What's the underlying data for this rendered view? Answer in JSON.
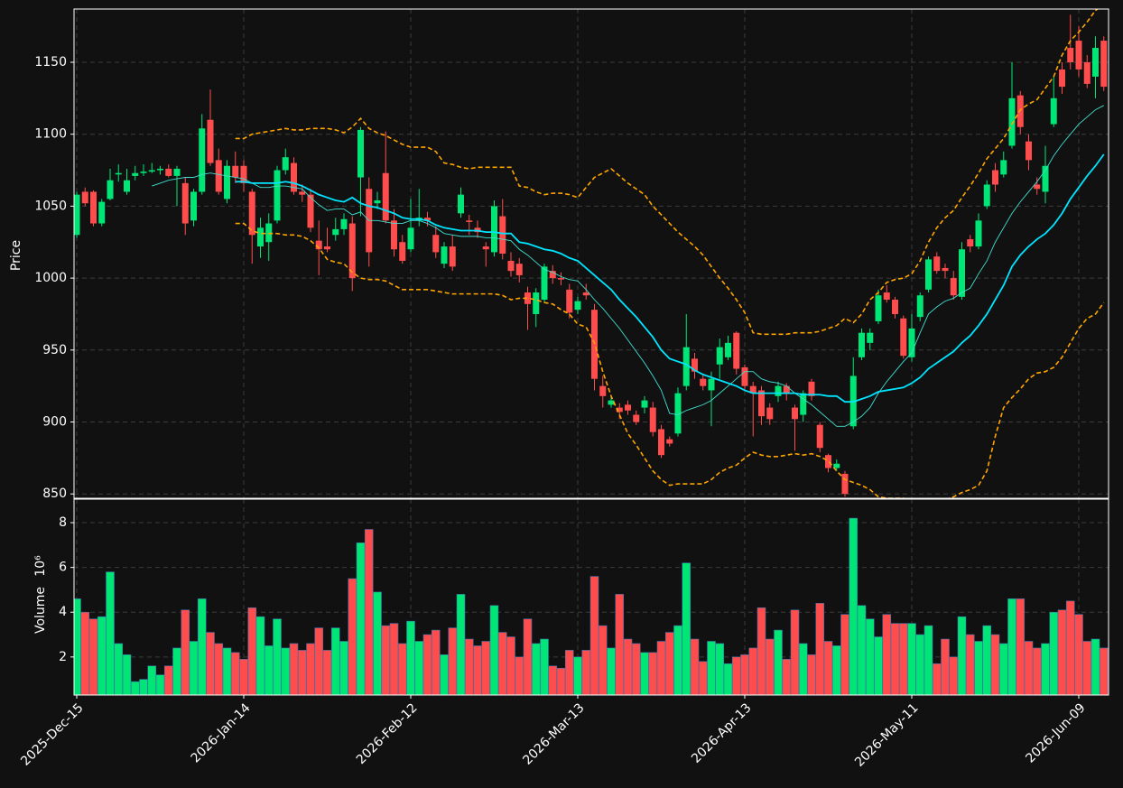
{
  "chart_data": {
    "type": "candlestick",
    "categories": [
      "2025-Dec-15",
      null,
      null,
      null,
      null,
      null,
      null,
      null,
      null,
      null,
      null,
      null,
      null,
      null,
      null,
      null,
      null,
      null,
      null,
      null,
      "2026-Jan-14",
      null,
      null,
      null,
      null,
      null,
      null,
      null,
      null,
      null,
      null,
      null,
      null,
      null,
      null,
      null,
      null,
      null,
      null,
      null,
      "2026-Feb-12",
      null,
      null,
      null,
      null,
      null,
      null,
      null,
      null,
      null,
      null,
      null,
      null,
      null,
      null,
      null,
      null,
      null,
      null,
      null,
      "2026-Mar-13",
      null,
      null,
      null,
      null,
      null,
      null,
      null,
      null,
      null,
      null,
      null,
      null,
      null,
      null,
      null,
      null,
      null,
      null,
      null,
      "2026-Apr-13",
      null,
      null,
      null,
      null,
      null,
      null,
      null,
      null,
      null,
      null,
      null,
      null,
      null,
      null,
      null,
      null,
      null,
      null,
      null,
      "2026-May-11",
      null,
      null,
      null,
      null,
      null,
      null,
      null,
      null,
      null,
      null,
      null,
      null,
      null,
      null,
      null,
      null,
      null,
      null,
      null,
      "2026-Jun-09",
      null,
      null,
      null
    ],
    "open": [
      1030,
      1060,
      1060,
      1038,
      1055,
      1072,
      1060,
      1071,
      1073,
      1074,
      1075,
      1076,
      1071,
      1066,
      1040,
      1060,
      1110,
      1082,
      1055,
      1078,
      1078,
      1060,
      1022,
      1025,
      1040,
      1075,
      1080,
      1060,
      1058,
      1026,
      1022,
      1030,
      1034,
      1038,
      1070,
      1062,
      1052,
      1073,
      1040,
      1025,
      1020,
      1040,
      1042,
      1030,
      1010,
      1022,
      1045,
      1040,
      1035,
      1022,
      1018,
      1043,
      1012,
      1010,
      990,
      975,
      985,
      1005,
      1000,
      992,
      978,
      990,
      978,
      925,
      912,
      910,
      912,
      905,
      910,
      910,
      895,
      888,
      892,
      925,
      944,
      930,
      922,
      940,
      945,
      962,
      938,
      925,
      922,
      910,
      918,
      925,
      910,
      905,
      928,
      898,
      877,
      868,
      864,
      897,
      945,
      955,
      970,
      990,
      985,
      972,
      945,
      973,
      992,
      1015,
      1007,
      1000,
      987,
      1027,
      1022,
      1050,
      1075,
      1072,
      1092,
      1127,
      1095,
      1065,
      1060,
      1107,
      1145,
      1160,
      1165,
      1150,
      1140,
      1165
    ],
    "high": [
      1060,
      1063,
      1061,
      1055,
      1076,
      1079,
      1076,
      1078,
      1079,
      1080,
      1078,
      1079,
      1078,
      1070,
      1062,
      1114,
      1131,
      1090,
      1082,
      1088,
      1082,
      1062,
      1042,
      1045,
      1078,
      1090,
      1084,
      1065,
      1062,
      1040,
      1035,
      1042,
      1045,
      1043,
      1105,
      1070,
      1060,
      1102,
      1048,
      1030,
      1055,
      1062,
      1046,
      1036,
      1025,
      1030,
      1063,
      1044,
      1040,
      1025,
      1054,
      1055,
      1018,
      1014,
      994,
      993,
      1010,
      1009,
      1004,
      996,
      987,
      996,
      982,
      932,
      918,
      913,
      915,
      908,
      918,
      914,
      898,
      890,
      924,
      975,
      948,
      933,
      935,
      958,
      960,
      963,
      940,
      928,
      925,
      913,
      928,
      927,
      912,
      922,
      930,
      900,
      878,
      874,
      866,
      945,
      965,
      965,
      992,
      995,
      987,
      974,
      975,
      990,
      1015,
      1018,
      1010,
      1005,
      1025,
      1030,
      1045,
      1068,
      1080,
      1088,
      1150,
      1130,
      1100,
      1070,
      1092,
      1140,
      1150,
      1183,
      1175,
      1155,
      1168,
      1168
    ],
    "low": [
      1028,
      1050,
      1036,
      1036,
      1054,
      1067,
      1058,
      1068,
      1071,
      1073,
      1072,
      1070,
      1050,
      1030,
      1036,
      1058,
      1078,
      1058,
      1052,
      1066,
      1060,
      1010,
      1014,
      1012,
      1038,
      1072,
      1058,
      1053,
      1032,
      1002,
      1018,
      1026,
      1030,
      991,
      1043,
      1008,
      1048,
      1038,
      1015,
      1010,
      1018,
      1036,
      1036,
      1014,
      1007,
      1005,
      1042,
      1030,
      1028,
      1008,
      1015,
      1013,
      1001,
      997,
      964,
      966,
      983,
      996,
      995,
      972,
      975,
      985,
      922,
      910,
      910,
      902,
      905,
      898,
      906,
      890,
      875,
      883,
      890,
      922,
      930,
      922,
      897,
      930,
      943,
      933,
      922,
      890,
      898,
      898,
      914,
      915,
      880,
      900,
      915,
      879,
      865,
      866,
      848,
      895,
      943,
      950,
      968,
      983,
      972,
      944,
      942,
      970,
      990,
      1003,
      1000,
      985,
      985,
      1018,
      1020,
      1048,
      1060,
      1070,
      1090,
      1100,
      1075,
      1058,
      1052,
      1105,
      1128,
      1145,
      1140,
      1132,
      1125,
      1130
    ],
    "close": [
      1058,
      1052,
      1038,
      1053,
      1068,
      1073,
      1068,
      1073,
      1074,
      1075,
      1076,
      1071,
      1076,
      1038,
      1060,
      1104,
      1080,
      1060,
      1078,
      1070,
      1066,
      1030,
      1035,
      1038,
      1075,
      1084,
      1060,
      1058,
      1035,
      1020,
      1020,
      1034,
      1041,
      1000,
      1103,
      1018,
      1054,
      1040,
      1020,
      1012,
      1035,
      1042,
      1040,
      1018,
      1022,
      1008,
      1058,
      1039,
      1032,
      1020,
      1050,
      1017,
      1005,
      1002,
      982,
      990,
      1008,
      1000,
      999,
      976,
      984,
      988,
      930,
      918,
      915,
      907,
      908,
      900,
      915,
      893,
      877,
      885,
      920,
      952,
      935,
      925,
      930,
      952,
      955,
      937,
      925,
      920,
      904,
      902,
      925,
      920,
      902,
      920,
      918,
      882,
      868,
      871,
      850,
      932,
      962,
      962,
      988,
      985,
      975,
      946,
      965,
      988,
      1013,
      1005,
      1005,
      988,
      1020,
      1022,
      1040,
      1065,
      1065,
      1082,
      1125,
      1105,
      1082,
      1062,
      1078,
      1125,
      1133,
      1150,
      1145,
      1135,
      1160,
      1133
    ],
    "up_color": "#00e676",
    "down_color": "#ff4d4d",
    "ylabel": "Price",
    "ylim": [
      847,
      1187
    ],
    "yticks": [
      850,
      900,
      950,
      1000,
      1050,
      1100,
      1150
    ],
    "grid": true,
    "overlays": [
      {
        "color": "#ffa500",
        "width": 1.6,
        "dashed": true,
        "values": [
          null,
          null,
          null,
          null,
          null,
          null,
          null,
          null,
          null,
          null,
          null,
          null,
          null,
          null,
          null,
          null,
          null,
          null,
          null,
          1097,
          1097,
          1100,
          1101,
          1102,
          1103,
          1104,
          1103,
          1103,
          1104,
          1104,
          1104,
          1103,
          1101,
          1105,
          1111,
          1104,
          1101,
          1099,
          1096,
          1093,
          1091,
          1091,
          1091,
          1088,
          1080,
          1079,
          1077,
          1076,
          1077,
          1077,
          1077,
          1077,
          1077,
          1064,
          1063,
          1060,
          1058,
          1059,
          1059,
          1058,
          1056,
          1063,
          1070,
          1073,
          1076,
          1071,
          1066,
          1062,
          1058,
          1050,
          1044,
          1038,
          1032,
          1027,
          1022,
          1016,
          1008,
          1000,
          993,
          985,
          976,
          962,
          961,
          961,
          961,
          961,
          962,
          962,
          962,
          963,
          965,
          967,
          972,
          969,
          975,
          985,
          990,
          997,
          999,
          1000,
          1003,
          1012,
          1025,
          1035,
          1042,
          1047,
          1056,
          1064,
          1073,
          1083,
          1090,
          1097,
          1107,
          1117,
          1121,
          1124,
          1132,
          1140,
          1155,
          1165,
          1171,
          1178,
          1186,
          1190
        ]
      },
      {
        "color": "#ffa500",
        "width": 1.6,
        "dashed": true,
        "values": [
          null,
          null,
          null,
          null,
          null,
          null,
          null,
          null,
          null,
          null,
          null,
          null,
          null,
          null,
          null,
          null,
          null,
          null,
          null,
          1038,
          1038,
          1033,
          1031,
          1031,
          1031,
          1030,
          1030,
          1029,
          1026,
          1021,
          1013,
          1011,
          1010,
          1004,
          1000,
          999,
          999,
          998,
          995,
          992,
          992,
          992,
          992,
          991,
          990,
          989,
          989,
          989,
          989,
          989,
          989,
          988,
          985,
          986,
          986,
          985,
          983,
          982,
          978,
          975,
          968,
          966,
          955,
          935,
          918,
          905,
          892,
          884,
          875,
          866,
          860,
          856,
          857,
          857,
          857,
          857,
          860,
          865,
          868,
          870,
          875,
          879,
          877,
          876,
          876,
          877,
          878,
          877,
          878,
          876,
          873,
          866,
          860,
          858,
          856,
          853,
          848,
          847,
          847,
          847,
          846,
          845,
          844,
          845,
          846,
          848,
          851,
          853,
          856,
          866,
          890,
          910,
          917,
          923,
          930,
          934,
          935,
          938,
          945,
          955,
          965,
          972,
          975,
          983
        ]
      },
      {
        "color": "#40e0d0",
        "width": 0.9,
        "dashed": false,
        "values": [
          null,
          null,
          null,
          null,
          null,
          null,
          null,
          null,
          null,
          1064,
          1066,
          1068,
          1069,
          1070,
          1070,
          1072,
          1073,
          1072,
          1071,
          1070,
          1069,
          1066,
          1063,
          1063,
          1064,
          1064,
          1063,
          1062,
          1056,
          1051,
          1047,
          1048,
          1048,
          1044,
          1046,
          1040,
          1040,
          1039,
          1038,
          1038,
          1040,
          1040,
          1038,
          1035,
          1031,
          1030,
          1029,
          1029,
          1029,
          1028,
          1028,
          1027,
          1026,
          1020,
          1016,
          1011,
          1006,
          1004,
          1001,
          999,
          998,
          992,
          985,
          979,
          972,
          965,
          957,
          949,
          941,
          932,
          922,
          906,
          905,
          908,
          910,
          912,
          915,
          920,
          925,
          930,
          935,
          935,
          930,
          928,
          927,
          925,
          920,
          916,
          912,
          907,
          902,
          897,
          897,
          900,
          904,
          910,
          920,
          928,
          935,
          942,
          948,
          962,
          975,
          980,
          984,
          986,
          990,
          993,
          1003,
          1012,
          1025,
          1035,
          1045,
          1053,
          1060,
          1067,
          1075,
          1085,
          1093,
          1100,
          1107,
          1112,
          1117,
          1120
        ]
      },
      {
        "color": "#00e5ff",
        "width": 1.8,
        "dashed": false,
        "values": [
          null,
          null,
          null,
          null,
          null,
          null,
          null,
          null,
          null,
          null,
          null,
          null,
          null,
          null,
          null,
          null,
          null,
          null,
          null,
          1067,
          1067,
          1066,
          1066,
          1066,
          1066,
          1067,
          1066,
          1064,
          1061,
          1058,
          1056,
          1054,
          1053,
          1056,
          1052,
          1050,
          1049,
          1047,
          1045,
          1042,
          1041,
          1041,
          1040,
          1037,
          1035,
          1034,
          1033,
          1033,
          1033,
          1032,
          1032,
          1031,
          1031,
          1025,
          1024,
          1022,
          1020,
          1019,
          1017,
          1014,
          1012,
          1007,
          1002,
          997,
          992,
          985,
          979,
          973,
          966,
          959,
          950,
          944,
          942,
          940,
          936,
          933,
          931,
          929,
          927,
          925,
          922,
          920,
          920,
          920,
          920,
          920,
          920,
          919,
          919,
          919,
          918,
          918,
          914,
          914,
          916,
          918,
          921,
          922,
          923,
          924,
          927,
          931,
          937,
          941,
          945,
          949,
          955,
          960,
          967,
          975,
          985,
          995,
          1008,
          1016,
          1022,
          1027,
          1031,
          1037,
          1045,
          1055,
          1063,
          1071,
          1078,
          1086
        ]
      }
    ],
    "volume": {
      "ylabel": "Volume",
      "scale_label": "10⁶",
      "values": [
        4.6,
        4.0,
        3.7,
        3.8,
        5.8,
        2.6,
        2.1,
        0.9,
        1.0,
        1.6,
        1.2,
        1.6,
        2.4,
        4.1,
        2.7,
        4.6,
        3.1,
        2.6,
        2.4,
        2.2,
        1.9,
        4.2,
        3.8,
        2.5,
        3.7,
        2.4,
        2.6,
        2.3,
        2.6,
        3.3,
        2.3,
        3.3,
        2.7,
        5.5,
        7.1,
        7.7,
        4.9,
        3.4,
        3.5,
        2.6,
        3.6,
        2.7,
        3.0,
        3.2,
        2.1,
        3.3,
        4.8,
        2.8,
        2.5,
        2.7,
        4.3,
        3.1,
        2.9,
        2.0,
        3.7,
        2.6,
        2.8,
        1.6,
        1.5,
        2.3,
        2.0,
        2.3,
        5.6,
        3.4,
        2.4,
        4.8,
        2.8,
        2.6,
        2.2,
        2.2,
        2.7,
        3.1,
        3.4,
        6.2,
        2.8,
        1.8,
        2.7,
        2.6,
        1.7,
        2.0,
        2.1,
        2.4,
        4.2,
        2.8,
        3.2,
        1.9,
        4.1,
        2.6,
        2.1,
        4.4,
        2.7,
        2.5,
        3.9,
        8.2,
        4.3,
        3.7,
        2.9,
        3.9,
        3.5,
        3.5,
        3.5,
        3.0,
        3.4,
        1.7,
        2.8,
        2.0,
        3.8,
        3.0,
        2.7,
        3.4,
        3.0,
        2.6,
        4.6,
        4.6,
        2.7,
        2.4,
        2.6,
        4.0,
        4.1,
        4.5,
        3.9,
        2.7,
        2.8,
        2.4
      ],
      "ylim": [
        0.3,
        9.05
      ],
      "yticks": [
        2,
        4,
        6,
        8
      ]
    }
  }
}
